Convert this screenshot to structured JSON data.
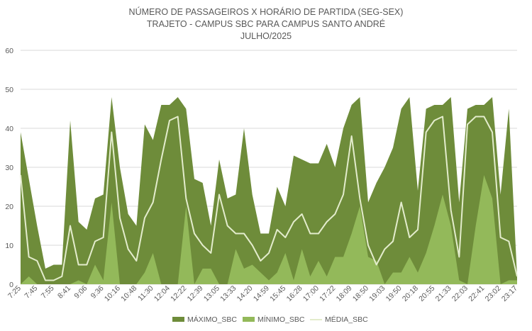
{
  "chart_data": {
    "type": "area",
    "title": "NÚMERO DE PASSAGEIROS X HORÁRIO DE PARTIDA (SEG-SEX)",
    "subtitle": "TRAJETO - CAMPUS SBC PARA CAMPUS SANTO ANDRÉ",
    "period": "JULHO/2025",
    "ylim": [
      0,
      60
    ],
    "yticks": [
      0,
      10,
      20,
      30,
      40,
      50,
      60
    ],
    "grid": true,
    "legend_position": "bottom",
    "x_tick_labels": [
      "7:25",
      "7:45",
      "7:55",
      "8:41",
      "9:06",
      "9:36",
      "10:16",
      "10:48",
      "11:30",
      "12:04",
      "12:22",
      "12:39",
      "13:05",
      "13:33",
      "14:20",
      "14:59",
      "15:45",
      "16:28",
      "17:00",
      "17:22",
      "18:09",
      "18:50",
      "19:03",
      "19:50",
      "20:18",
      "20:55",
      "21:33",
      "22:03",
      "22:41",
      "23:02",
      "23:17"
    ],
    "x_tick_index": [
      0,
      2,
      4,
      6,
      8,
      10,
      12,
      14,
      16,
      18,
      20,
      22,
      24,
      26,
      28,
      30,
      32,
      34,
      36,
      38,
      40,
      42,
      44,
      46,
      48,
      50,
      52,
      54,
      56,
      58,
      60
    ],
    "colors": {
      "max": "#6e8c3a",
      "min": "#93b95a",
      "mean": "#e3eccc",
      "grid": "#d9d9d9",
      "text": "#595959"
    },
    "series": [
      {
        "name": "MÁXIMO_SBC",
        "values": [
          39,
          27,
          15,
          4,
          5,
          5,
          42,
          16,
          14,
          22,
          23,
          48,
          30,
          18,
          15,
          41,
          37,
          46,
          46,
          48,
          45,
          27,
          26,
          15,
          32,
          22,
          23,
          40,
          23,
          13,
          13,
          25,
          20,
          33,
          32,
          31,
          31,
          36,
          30,
          40,
          46,
          48,
          21,
          26,
          30,
          35,
          45,
          48,
          24,
          45,
          46,
          46,
          48,
          21,
          45,
          46,
          46,
          48,
          23,
          45,
          2
        ]
      },
      {
        "name": "MÍNIMO_SBC",
        "values": [
          0,
          2,
          0,
          0,
          0,
          0,
          0,
          1,
          0,
          5,
          1,
          21,
          0,
          0,
          0,
          3,
          8,
          0,
          0,
          0,
          20,
          0,
          4,
          4,
          0,
          0,
          9,
          4,
          5,
          3,
          1,
          3,
          8,
          1,
          9,
          2,
          6,
          2,
          7,
          7,
          13,
          20,
          7,
          6,
          0,
          3,
          3,
          7,
          3,
          8,
          15,
          23,
          15,
          1,
          0,
          15,
          28,
          22,
          0,
          1,
          1
        ]
      },
      {
        "name": "MÉDIA_SBC",
        "values": [
          28,
          7,
          6,
          1,
          1,
          2,
          15,
          5,
          5,
          11,
          12,
          39,
          17,
          9,
          6,
          17,
          21,
          32,
          42,
          43,
          22,
          13,
          10,
          8,
          23,
          15,
          13,
          13,
          10,
          6,
          8,
          14,
          12,
          16,
          18,
          13,
          13,
          16,
          18,
          23,
          38,
          22,
          10,
          5,
          9,
          11,
          21,
          12,
          14,
          39,
          42,
          43,
          19,
          7,
          41,
          43,
          43,
          39,
          12,
          11,
          2
        ]
      }
    ]
  }
}
